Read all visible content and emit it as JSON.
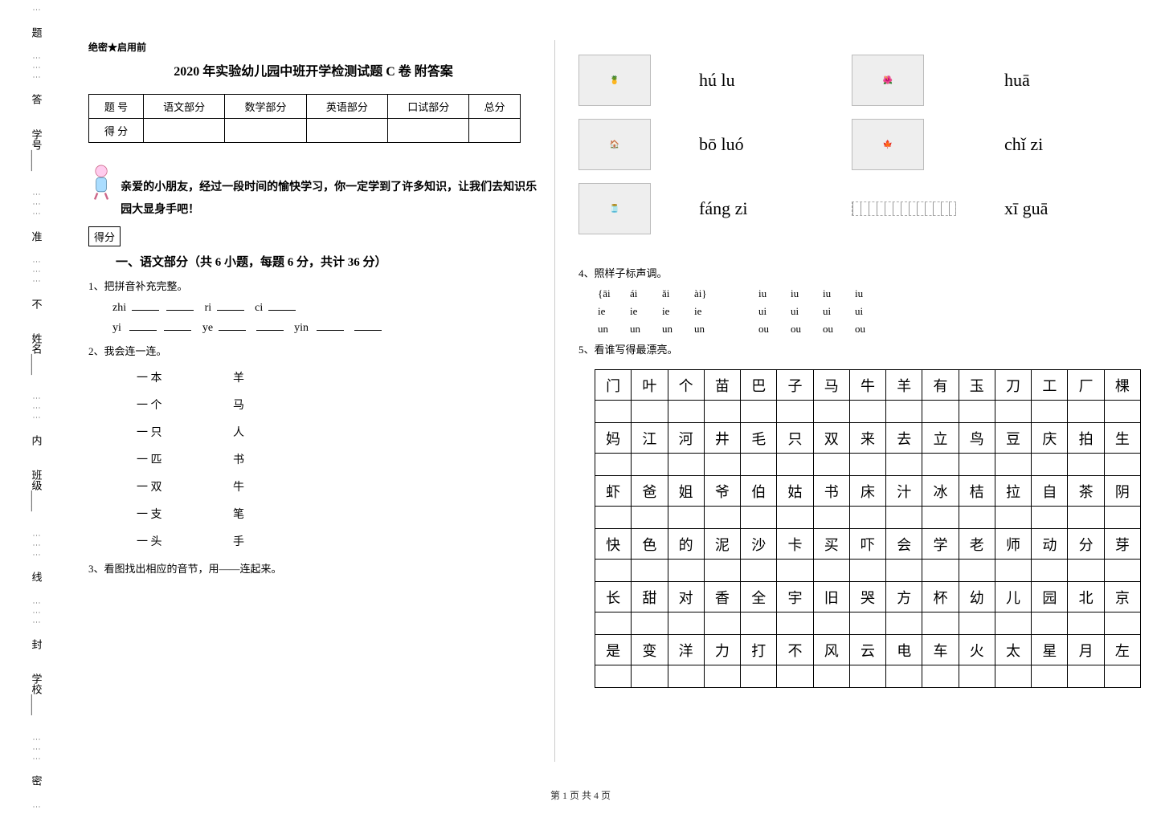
{
  "classification": "绝密★启用前",
  "title": "2020 年实验幼儿园中班开学检测试题 C 卷  附答案",
  "score_table": {
    "headers": [
      "题    号",
      "语文部分",
      "数学部分",
      "英语部分",
      "口试部分",
      "总分"
    ],
    "row2_label": "得    分"
  },
  "intro": "亲爱的小朋友，经过一段时间的愉快学习，你一定学到了许多知识，让我们去知识乐园大显身手吧！",
  "score_box_label": "得分",
  "section1_title": "一、语文部分（共 6 小题，每题 6 分，共计 36 分）",
  "q1": "1、把拼音补充完整。",
  "q1_lines": {
    "line1_parts": [
      "zhi",
      "ri",
      "ci"
    ],
    "line2_parts": [
      "yi",
      "ye",
      "yin"
    ]
  },
  "q2": "2、我会连一连。",
  "match": {
    "left": [
      "一  本",
      "一  个",
      "一  只",
      "一  匹",
      "一  双",
      "一  支",
      "一  头"
    ],
    "right": [
      "羊",
      "马",
      "人",
      "书",
      "牛",
      "笔",
      "手"
    ]
  },
  "q3": "3、看图找出相应的音节，用——连起来。",
  "right_page": {
    "img_pinyin": [
      {
        "img": "pineapple",
        "pinyin": "hú lu"
      },
      {
        "img": "flower",
        "pinyin": "huā"
      },
      {
        "img": "house",
        "pinyin": "bō luó"
      },
      {
        "img": "leaf",
        "pinyin": "chǐ zi"
      },
      {
        "img": "gourd",
        "pinyin": "fáng zi"
      },
      {
        "img": "ruler",
        "pinyin": "xī guā"
      }
    ],
    "q4": "4、照样子标声调。",
    "tones": {
      "row1": [
        "{āi",
        "ái",
        "ǎi",
        "ài}",
        "",
        "iu",
        "iu",
        "iu",
        "iu"
      ],
      "row2": [
        "ie",
        "ie",
        "ie",
        "ie",
        "",
        "ui",
        "ui",
        "ui",
        "ui"
      ],
      "row3": [
        "un",
        "un",
        "un",
        "un",
        "",
        "ou",
        "ou",
        "ou",
        "ou"
      ]
    },
    "q5": "5、看谁写得最漂亮。",
    "char_rows": [
      [
        "门",
        "叶",
        "个",
        "苗",
        "巴",
        "子",
        "马",
        "牛",
        "羊",
        "有",
        "玉",
        "刀",
        "工",
        "厂",
        "棵"
      ],
      [
        "妈",
        "江",
        "河",
        "井",
        "毛",
        "只",
        "双",
        "来",
        "去",
        "立",
        "鸟",
        "豆",
        "庆",
        "拍",
        "生"
      ],
      [
        "虾",
        "爸",
        "姐",
        "爷",
        "伯",
        "姑",
        "书",
        "床",
        "汁",
        "冰",
        "桔",
        "拉",
        "自",
        "茶",
        "阴"
      ],
      [
        "快",
        "色",
        "的",
        "泥",
        "沙",
        "卡",
        "买",
        "吓",
        "会",
        "学",
        "老",
        "师",
        "动",
        "分",
        "芽"
      ],
      [
        "长",
        "甜",
        "对",
        "香",
        "全",
        "宇",
        "旧",
        "哭",
        "方",
        "杯",
        "幼",
        "儿",
        "园",
        "北",
        "京"
      ],
      [
        "是",
        "变",
        "洋",
        "力",
        "打",
        "不",
        "风",
        "云",
        "电",
        "车",
        "火",
        "太",
        "星",
        "月",
        "左"
      ]
    ]
  },
  "sidebar": {
    "labels": [
      "学号",
      "姓名",
      "班级",
      "学校"
    ],
    "markers": [
      "题",
      "答",
      "准",
      "不",
      "内",
      "线",
      "封",
      "密"
    ]
  },
  "footer": "第 1 页  共 4 页"
}
